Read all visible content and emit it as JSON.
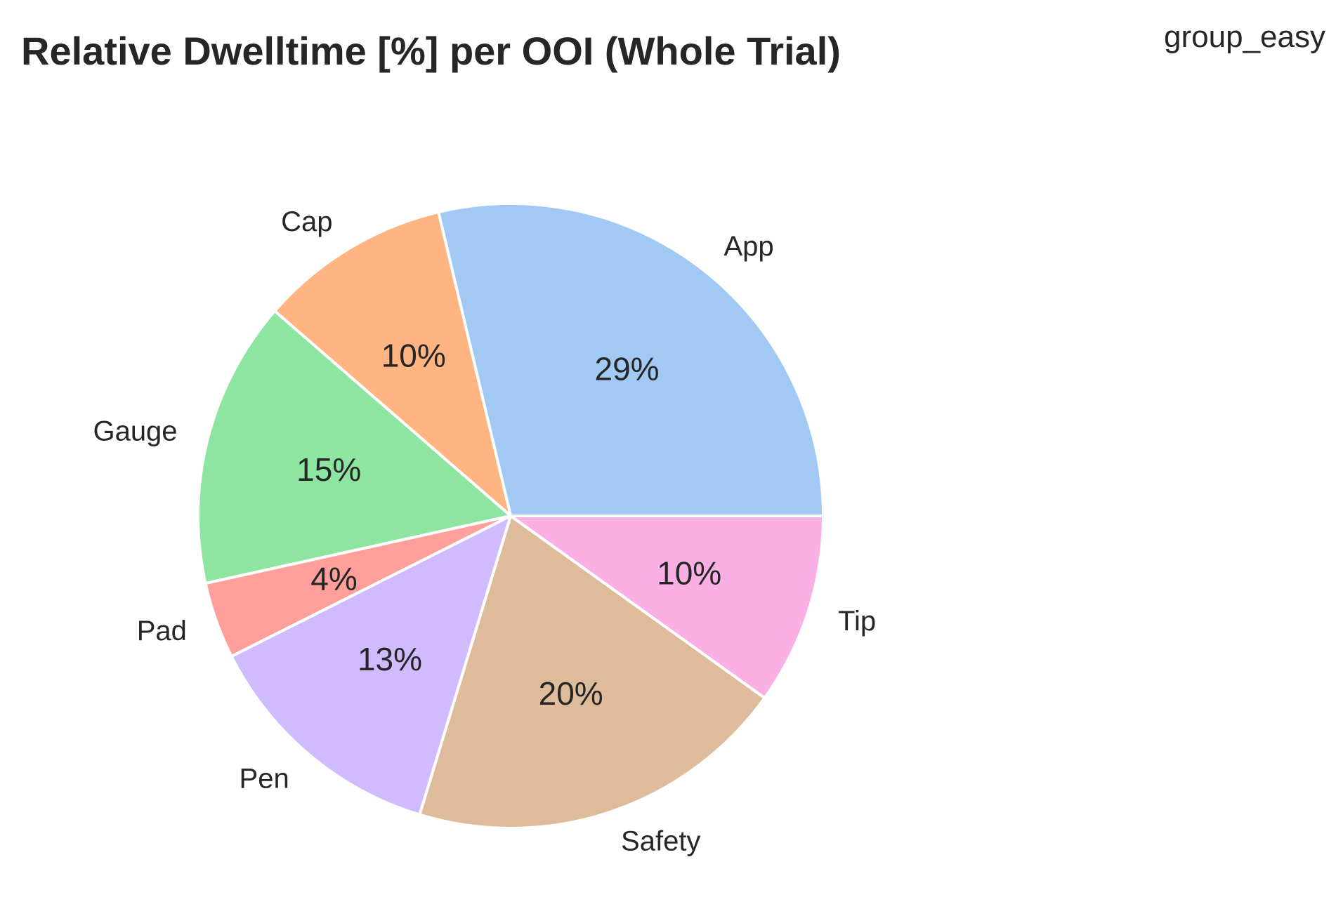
{
  "chart_data": {
    "type": "pie",
    "title": "Relative Dwelltime [%] per OOI (Whole Trial)",
    "subtitle": "group_easy",
    "categories": [
      "App",
      "Cap",
      "Gauge",
      "Pad",
      "Pen",
      "Safety",
      "Tip"
    ],
    "values": [
      29,
      10,
      15,
      4,
      13,
      20,
      10
    ],
    "value_labels": [
      "29%",
      "10%",
      "15%",
      "4%",
      "13%",
      "20%",
      "10%"
    ],
    "colors": [
      "#a1c9f4",
      "#ffb482",
      "#8de5a1",
      "#ff9f9b",
      "#d0bbff",
      "#debb9b",
      "#fab0e4"
    ],
    "start_angle": 0,
    "direction": "counterclockwise",
    "legend": "none"
  }
}
